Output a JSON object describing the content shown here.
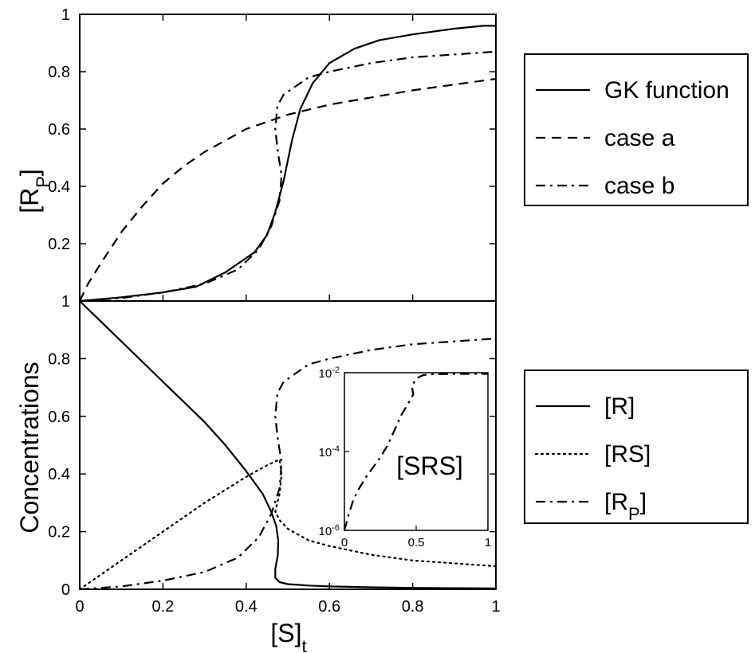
{
  "chart_data": [
    {
      "id": "top",
      "type": "line",
      "ylabel": "[R",
      "ylabel_sub": "P",
      "ylabel_close": "]",
      "xlim": [
        0,
        1
      ],
      "ylim": [
        0,
        1
      ],
      "yticks": [
        "1",
        "0.8",
        "0.6",
        "0.4",
        "0.2"
      ],
      "ytick_values": [
        1,
        0.8,
        0.6,
        0.4,
        0.2
      ],
      "legend_position": "right",
      "series": [
        {
          "name": "GK function",
          "style": "solid",
          "points": [
            [
              0,
              0
            ],
            [
              0.1,
              0.013
            ],
            [
              0.2,
              0.03
            ],
            [
              0.28,
              0.05
            ],
            [
              0.35,
              0.1
            ],
            [
              0.42,
              0.17
            ],
            [
              0.45,
              0.23
            ],
            [
              0.47,
              0.31
            ],
            [
              0.49,
              0.42
            ],
            [
              0.51,
              0.56
            ],
            [
              0.53,
              0.67
            ],
            [
              0.56,
              0.76
            ],
            [
              0.6,
              0.83
            ],
            [
              0.66,
              0.88
            ],
            [
              0.72,
              0.91
            ],
            [
              0.8,
              0.93
            ],
            [
              0.9,
              0.95
            ],
            [
              0.97,
              0.96
            ],
            [
              1,
              0.96
            ]
          ]
        },
        {
          "name": "case a",
          "style": "dashed",
          "points": [
            [
              0,
              0
            ],
            [
              0.02,
              0.06
            ],
            [
              0.05,
              0.13
            ],
            [
              0.1,
              0.24
            ],
            [
              0.15,
              0.33
            ],
            [
              0.2,
              0.41
            ],
            [
              0.25,
              0.47
            ],
            [
              0.3,
              0.52
            ],
            [
              0.35,
              0.56
            ],
            [
              0.4,
              0.6
            ],
            [
              0.5,
              0.65
            ],
            [
              0.6,
              0.685
            ],
            [
              0.7,
              0.71
            ],
            [
              0.8,
              0.735
            ],
            [
              0.9,
              0.755
            ],
            [
              1,
              0.775
            ]
          ]
        },
        {
          "name": "case b",
          "style": "dashdot",
          "points": [
            [
              0,
              0
            ],
            [
              0.1,
              0.01
            ],
            [
              0.2,
              0.03
            ],
            [
              0.3,
              0.06
            ],
            [
              0.38,
              0.11
            ],
            [
              0.43,
              0.18
            ],
            [
              0.46,
              0.26
            ],
            [
              0.48,
              0.35
            ],
            [
              0.485,
              0.44
            ],
            [
              0.476,
              0.52
            ],
            [
              0.47,
              0.6
            ],
            [
              0.475,
              0.68
            ],
            [
              0.49,
              0.72
            ],
            [
              0.52,
              0.75
            ],
            [
              0.55,
              0.78
            ],
            [
              0.6,
              0.8
            ],
            [
              0.7,
              0.83
            ],
            [
              0.8,
              0.85
            ],
            [
              0.9,
              0.86
            ],
            [
              1,
              0.87
            ]
          ]
        }
      ]
    },
    {
      "id": "bottom",
      "type": "line",
      "xlabel": "[S]",
      "xlabel_sub": "t",
      "ylabel": "Concentrations",
      "xlim": [
        0,
        1
      ],
      "ylim": [
        0,
        1
      ],
      "xticks": [
        "0",
        "0.2",
        "0.4",
        "0.6",
        "0.8",
        "1"
      ],
      "xtick_values": [
        0,
        0.2,
        0.4,
        0.6,
        0.8,
        1
      ],
      "yticks": [
        "1",
        "0.8",
        "0.6",
        "0.4",
        "0.2",
        "0"
      ],
      "ytick_values": [
        1,
        0.8,
        0.6,
        0.4,
        0.2,
        0
      ],
      "legend_position": "right",
      "series": [
        {
          "name": "[R]",
          "name_sub": "",
          "style": "solid",
          "points": [
            [
              0,
              1
            ],
            [
              0.05,
              0.93
            ],
            [
              0.1,
              0.86
            ],
            [
              0.15,
              0.79
            ],
            [
              0.2,
              0.72
            ],
            [
              0.25,
              0.65
            ],
            [
              0.3,
              0.58
            ],
            [
              0.35,
              0.5
            ],
            [
              0.4,
              0.41
            ],
            [
              0.44,
              0.33
            ],
            [
              0.46,
              0.27
            ],
            [
              0.472,
              0.22
            ],
            [
              0.477,
              0.17
            ],
            [
              0.476,
              0.12
            ],
            [
              0.47,
              0.07
            ],
            [
              0.47,
              0.04
            ],
            [
              0.48,
              0.025
            ],
            [
              0.5,
              0.018
            ],
            [
              0.55,
              0.013
            ],
            [
              0.6,
              0.01
            ],
            [
              0.7,
              0.007
            ],
            [
              0.8,
              0.005
            ],
            [
              0.9,
              0.004
            ],
            [
              1,
              0.003
            ]
          ]
        },
        {
          "name": "[RS]",
          "name_sub": "",
          "style": "dotted",
          "points": [
            [
              0,
              0
            ],
            [
              0.1,
              0.1
            ],
            [
              0.2,
              0.2
            ],
            [
              0.3,
              0.3
            ],
            [
              0.4,
              0.39
            ],
            [
              0.45,
              0.43
            ],
            [
              0.48,
              0.45
            ],
            [
              0.485,
              0.4
            ],
            [
              0.48,
              0.33
            ],
            [
              0.47,
              0.27
            ],
            [
              0.48,
              0.24
            ],
            [
              0.5,
              0.21
            ],
            [
              0.55,
              0.17
            ],
            [
              0.6,
              0.15
            ],
            [
              0.7,
              0.12
            ],
            [
              0.8,
              0.1
            ],
            [
              0.9,
              0.09
            ],
            [
              1,
              0.08
            ]
          ]
        },
        {
          "name": "[R",
          "name_sub": "P",
          "name_close": "]",
          "style": "dashdot",
          "points": [
            [
              0,
              0
            ],
            [
              0.1,
              0.01
            ],
            [
              0.2,
              0.03
            ],
            [
              0.3,
              0.06
            ],
            [
              0.38,
              0.11
            ],
            [
              0.43,
              0.18
            ],
            [
              0.46,
              0.26
            ],
            [
              0.48,
              0.35
            ],
            [
              0.485,
              0.44
            ],
            [
              0.476,
              0.52
            ],
            [
              0.47,
              0.6
            ],
            [
              0.475,
              0.68
            ],
            [
              0.49,
              0.72
            ],
            [
              0.52,
              0.75
            ],
            [
              0.55,
              0.78
            ],
            [
              0.6,
              0.8
            ],
            [
              0.7,
              0.83
            ],
            [
              0.8,
              0.85
            ],
            [
              0.9,
              0.86
            ],
            [
              1,
              0.87
            ]
          ]
        }
      ]
    },
    {
      "id": "inset",
      "type": "line",
      "label": "[SRS]",
      "xlim": [
        0,
        1
      ],
      "ylim_log10": [
        -6,
        -2
      ],
      "xticks": [
        "0",
        "0.5",
        "1"
      ],
      "xtick_values": [
        0,
        0.5,
        1
      ],
      "yticks": [
        {
          "base": "10",
          "exp": "-2",
          "value": -2
        },
        {
          "base": "10",
          "exp": "-4",
          "value": -4
        },
        {
          "base": "10",
          "exp": "-6",
          "value": -6
        }
      ],
      "series": [
        {
          "name": "",
          "style": "dashdot",
          "log10_points": [
            [
              0,
              -6
            ],
            [
              0.03,
              -5.6
            ],
            [
              0.06,
              -5.25
            ],
            [
              0.1,
              -4.95
            ],
            [
              0.15,
              -4.65
            ],
            [
              0.2,
              -4.4
            ],
            [
              0.25,
              -4.15
            ],
            [
              0.3,
              -3.85
            ],
            [
              0.35,
              -3.45
            ],
            [
              0.4,
              -3.05
            ],
            [
              0.45,
              -2.75
            ],
            [
              0.48,
              -2.55
            ],
            [
              0.47,
              -2.35
            ],
            [
              0.5,
              -2.15
            ],
            [
              0.55,
              -2.06
            ],
            [
              0.6,
              -2.04
            ],
            [
              0.8,
              -2.03
            ],
            [
              1,
              -2.03
            ]
          ]
        }
      ]
    }
  ]
}
